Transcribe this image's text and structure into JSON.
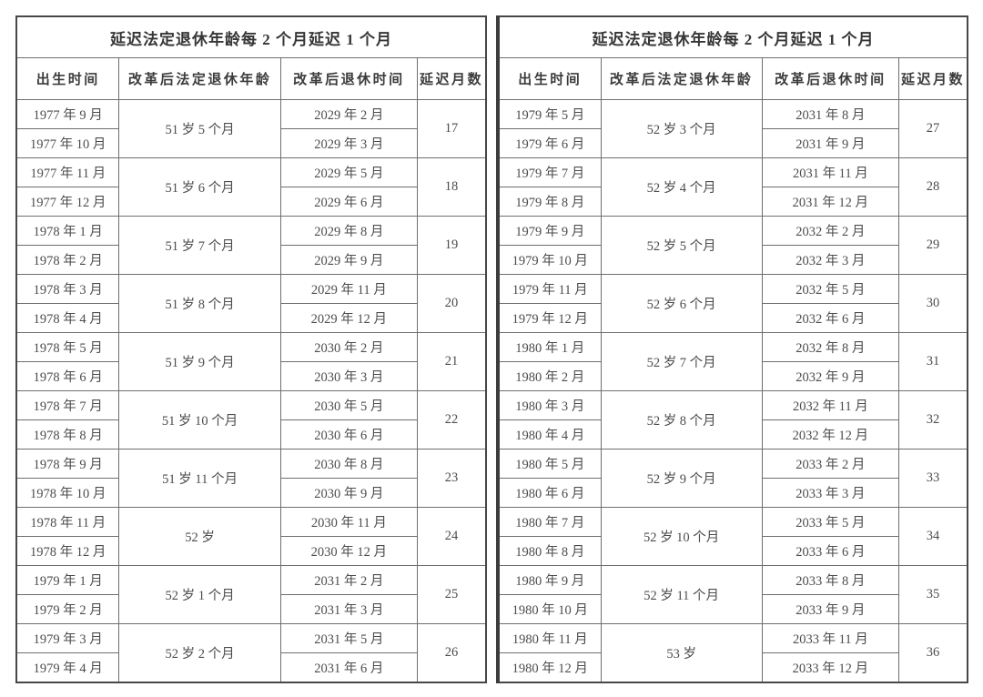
{
  "tables": [
    {
      "title": "延迟法定退休年龄每 2 个月延迟 1 个月",
      "columns": [
        "出生时间",
        "改革后法定退休年龄",
        "改革后退休时间",
        "延迟月数"
      ],
      "groups": [
        {
          "births": [
            "1977 年 9 月",
            "1977 年 10 月"
          ],
          "age": "51 岁 5 个月",
          "retirements": [
            "2029 年 2 月",
            "2029 年 3 月"
          ],
          "months": "17"
        },
        {
          "births": [
            "1977 年 11 月",
            "1977 年 12 月"
          ],
          "age": "51 岁 6 个月",
          "retirements": [
            "2029 年 5 月",
            "2029 年 6 月"
          ],
          "months": "18"
        },
        {
          "births": [
            "1978 年 1 月",
            "1978 年 2 月"
          ],
          "age": "51 岁 7 个月",
          "retirements": [
            "2029 年 8 月",
            "2029 年 9 月"
          ],
          "months": "19"
        },
        {
          "births": [
            "1978 年 3 月",
            "1978 年 4 月"
          ],
          "age": "51 岁 8 个月",
          "retirements": [
            "2029 年 11 月",
            "2029 年 12 月"
          ],
          "months": "20"
        },
        {
          "births": [
            "1978 年 5 月",
            "1978 年 6 月"
          ],
          "age": "51 岁 9 个月",
          "retirements": [
            "2030 年 2 月",
            "2030 年 3 月"
          ],
          "months": "21"
        },
        {
          "births": [
            "1978 年 7 月",
            "1978 年 8 月"
          ],
          "age": "51 岁 10 个月",
          "retirements": [
            "2030 年 5 月",
            "2030 年 6 月"
          ],
          "months": "22"
        },
        {
          "births": [
            "1978 年 9 月",
            "1978 年 10 月"
          ],
          "age": "51 岁 11 个月",
          "retirements": [
            "2030 年 8 月",
            "2030 年 9 月"
          ],
          "months": "23"
        },
        {
          "births": [
            "1978 年 11 月",
            "1978 年 12 月"
          ],
          "age": "52 岁",
          "retirements": [
            "2030 年 11 月",
            "2030 年 12 月"
          ],
          "months": "24"
        },
        {
          "births": [
            "1979 年 1 月",
            "1979 年 2 月"
          ],
          "age": "52 岁 1 个月",
          "retirements": [
            "2031 年 2 月",
            "2031 年 3 月"
          ],
          "months": "25"
        },
        {
          "births": [
            "1979 年 3 月",
            "1979 年 4 月"
          ],
          "age": "52 岁 2 个月",
          "retirements": [
            "2031 年 5 月",
            "2031 年 6 月"
          ],
          "months": "26"
        }
      ]
    },
    {
      "title": "延迟法定退休年龄每 2 个月延迟 1 个月",
      "columns": [
        "出生时间",
        "改革后法定退休年龄",
        "改革后退休时间",
        "延迟月数"
      ],
      "groups": [
        {
          "births": [
            "1979 年 5 月",
            "1979 年 6 月"
          ],
          "age": "52 岁 3 个月",
          "retirements": [
            "2031 年 8 月",
            "2031 年 9 月"
          ],
          "months": "27"
        },
        {
          "births": [
            "1979 年 7 月",
            "1979 年 8 月"
          ],
          "age": "52 岁 4 个月",
          "retirements": [
            "2031 年 11 月",
            "2031 年 12 月"
          ],
          "months": "28"
        },
        {
          "births": [
            "1979 年 9 月",
            "1979 年 10 月"
          ],
          "age": "52 岁 5 个月",
          "retirements": [
            "2032 年 2 月",
            "2032 年 3 月"
          ],
          "months": "29"
        },
        {
          "births": [
            "1979 年 11 月",
            "1979 年 12 月"
          ],
          "age": "52 岁 6 个月",
          "retirements": [
            "2032 年 5 月",
            "2032 年 6 月"
          ],
          "months": "30"
        },
        {
          "births": [
            "1980 年 1 月",
            "1980 年 2 月"
          ],
          "age": "52 岁 7 个月",
          "retirements": [
            "2032 年 8 月",
            "2032 年 9 月"
          ],
          "months": "31"
        },
        {
          "births": [
            "1980 年 3 月",
            "1980 年 4 月"
          ],
          "age": "52 岁 8 个月",
          "retirements": [
            "2032 年 11 月",
            "2032 年 12 月"
          ],
          "months": "32"
        },
        {
          "births": [
            "1980 年 5 月",
            "1980 年 6 月"
          ],
          "age": "52 岁 9 个月",
          "retirements": [
            "2033 年 2 月",
            "2033 年 3 月"
          ],
          "months": "33"
        },
        {
          "births": [
            "1980 年 7 月",
            "1980 年 8 月"
          ],
          "age": "52 岁 10 个月",
          "retirements": [
            "2033 年 5 月",
            "2033 年 6 月"
          ],
          "months": "34"
        },
        {
          "births": [
            "1980 年 9 月",
            "1980 年 10 月"
          ],
          "age": "52 岁 11 个月",
          "retirements": [
            "2033 年 8 月",
            "2033 年 9 月"
          ],
          "months": "35"
        },
        {
          "births": [
            "1980 年 11 月",
            "1980 年 12 月"
          ],
          "age": "53 岁",
          "retirements": [
            "2033 年 11 月",
            "2033 年 12 月"
          ],
          "months": "36"
        }
      ]
    }
  ]
}
